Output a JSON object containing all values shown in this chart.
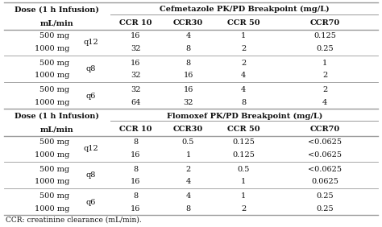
{
  "title1": "Cefmetazole PK/PD Breakpoint (mg/L)",
  "title2": "Flomoxef PK/PD Breakpoint (mg/L)",
  "dose_header": "Dose (1 h Infusion)",
  "ml_header": "mL/min",
  "ccr_headers": [
    "CCR 10",
    "CCR30",
    "CCR 50",
    "CCR70"
  ],
  "footnote": "CCR: creatinine clearance (mL/min).",
  "section1_rows": [
    [
      "500 mg",
      "q12",
      "16",
      "4",
      "1",
      "0.125"
    ],
    [
      "1000 mg",
      "",
      "32",
      "8",
      "2",
      "0.25"
    ],
    [
      "500 mg",
      "q8",
      "16",
      "8",
      "2",
      "1"
    ],
    [
      "1000 mg",
      "",
      "32",
      "16",
      "4",
      "2"
    ],
    [
      "500 mg",
      "q6",
      "32",
      "16",
      "4",
      "2"
    ],
    [
      "1000 mg",
      "",
      "64",
      "32",
      "8",
      "4"
    ]
  ],
  "section2_rows": [
    [
      "500 mg",
      "q12",
      "8",
      "0.5",
      "0.125",
      "<0.0625"
    ],
    [
      "1000 mg",
      "",
      "16",
      "1",
      "0.125",
      "<0.0625"
    ],
    [
      "500 mg",
      "q8",
      "8",
      "2",
      "0.5",
      "<0.0625"
    ],
    [
      "1000 mg",
      "",
      "16",
      "4",
      "1",
      "0.0625"
    ],
    [
      "500 mg",
      "q6",
      "8",
      "4",
      "1",
      "0.25"
    ],
    [
      "1000 mg",
      "",
      "16",
      "8",
      "2",
      "0.25"
    ]
  ],
  "bg_color": "#ffffff",
  "line_color": "#999999",
  "text_color": "#111111",
  "font_size": 7.0
}
